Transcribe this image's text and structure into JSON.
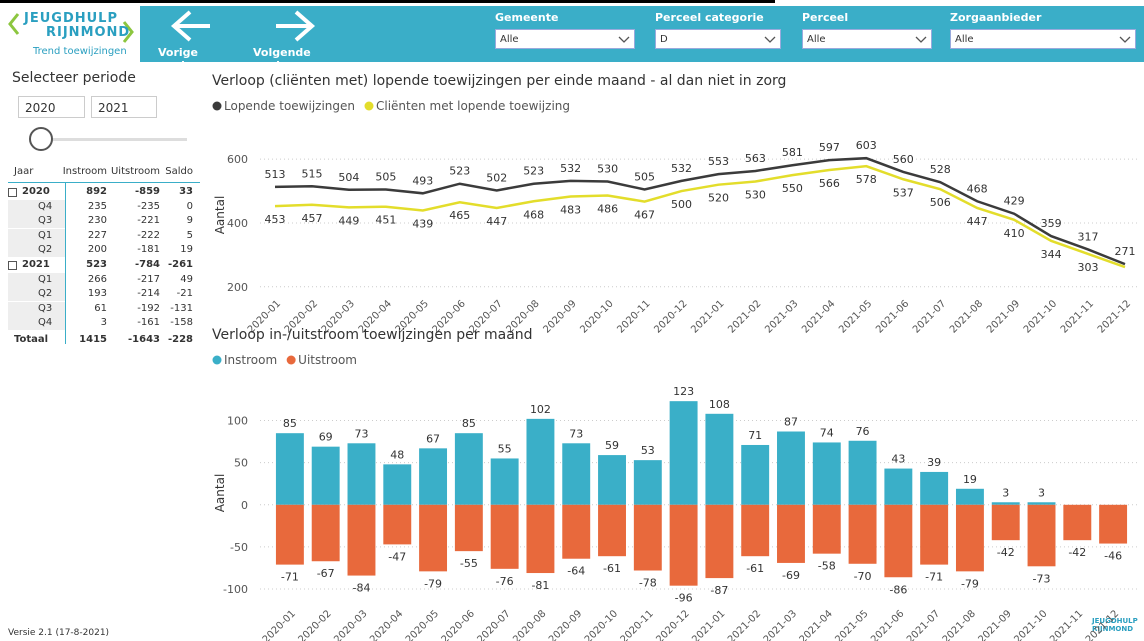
{
  "header": {
    "logo_line1": "JEUGDHULP",
    "logo_line2": "RIJNMOND",
    "subtitle": "Trend toewijzingen",
    "prev": "Vorige pagina",
    "next": "Volgende pagina",
    "filters": [
      {
        "label": "Gemeente",
        "value": "Alle"
      },
      {
        "label": "Perceel categorie",
        "value": "D"
      },
      {
        "label": "Perceel",
        "value": "Alle"
      },
      {
        "label": "Zorgaanbieder",
        "value": "Alle"
      }
    ]
  },
  "sidebar": {
    "title": "Selecteer periode",
    "from": "2020",
    "to": "2021",
    "table": {
      "header": [
        "Jaar",
        "Instroom",
        "Uitstroom",
        "Saldo"
      ],
      "rows": [
        [
          "2020",
          "892",
          "-859",
          "33"
        ],
        [
          "Q4",
          "235",
          "-235",
          "0"
        ],
        [
          "Q3",
          "230",
          "-221",
          "9"
        ],
        [
          "Q1",
          "227",
          "-222",
          "5"
        ],
        [
          "Q2",
          "200",
          "-181",
          "19"
        ],
        [
          "2021",
          "523",
          "-784",
          "-261"
        ],
        [
          "Q1",
          "266",
          "-217",
          "49"
        ],
        [
          "Q2",
          "193",
          "-214",
          "-21"
        ],
        [
          "Q3",
          "61",
          "-192",
          "-131"
        ],
        [
          "Q4",
          "3",
          "-161",
          "-158"
        ]
      ],
      "total": [
        "Totaal",
        "1415",
        "-1643",
        "-228"
      ]
    }
  },
  "footer": {
    "version": "Versie 2.1 (17-8-2021)"
  },
  "chart_data": [
    {
      "type": "line",
      "title": "Verloop (cliënten met) lopende toewijzingen per einde maand - al dan niet in zorg",
      "y_label": "Aantal",
      "categories": [
        "2020-01",
        "2020-02",
        "2020-03",
        "2020-04",
        "2020-05",
        "2020-06",
        "2020-07",
        "2020-08",
        "2020-09",
        "2020-10",
        "2020-11",
        "2020-12",
        "2021-01",
        "2021-02",
        "2021-03",
        "2021-04",
        "2021-05",
        "2021-06",
        "2021-07",
        "2021-08",
        "2021-09",
        "2021-10",
        "2021-11",
        "2021-12"
      ],
      "series": [
        {
          "name": "Lopende toewijzingen",
          "color": "#3b3b3b",
          "values": [
            513,
            515,
            504,
            505,
            493,
            523,
            502,
            523,
            532,
            530,
            505,
            532,
            553,
            563,
            581,
            597,
            603,
            560,
            528,
            468,
            429,
            359,
            317,
            271
          ]
        },
        {
          "name": "Cliënten met lopende toewijzing",
          "color": "#e3dd2b",
          "values": [
            453,
            457,
            449,
            451,
            439,
            465,
            447,
            468,
            483,
            486,
            467,
            500,
            520,
            530,
            550,
            566,
            578,
            537,
            506,
            447,
            410,
            344,
            303,
            262
          ],
          "value_labels": [
            "453",
            "457",
            "449",
            "451",
            "439",
            "465",
            "447",
            "468",
            "483",
            "486",
            "467",
            "500",
            "520",
            "530",
            "550",
            "566",
            "578",
            "537",
            "506",
            "447",
            "410",
            "344",
            "303",
            null
          ]
        }
      ],
      "ylim": [
        190,
        660
      ],
      "yticks": [
        200,
        400,
        600
      ],
      "grid": true
    },
    {
      "type": "bar",
      "title": "Verloop in-/uitstroom toewijzingen per maand",
      "y_label": "Aantal",
      "categories": [
        "2020-01",
        "2020-02",
        "2020-03",
        "2020-04",
        "2020-05",
        "2020-06",
        "2020-07",
        "2020-08",
        "2020-09",
        "2020-10",
        "2020-11",
        "2020-12",
        "2021-01",
        "2021-02",
        "2021-03",
        "2021-04",
        "2021-05",
        "2021-06",
        "2021-07",
        "2021-08",
        "2021-09",
        "2021-10",
        "2021-11",
        "2021-12"
      ],
      "series": [
        {
          "name": "Instroom",
          "color": "#3aafc8",
          "values": [
            85,
            69,
            73,
            48,
            67,
            85,
            55,
            102,
            73,
            59,
            53,
            123,
            108,
            71,
            87,
            74,
            76,
            43,
            39,
            19,
            3,
            3,
            null,
            null
          ]
        },
        {
          "name": "Uitstroom",
          "color": "#e8693c",
          "values": [
            -71,
            -67,
            -84,
            -47,
            -79,
            -55,
            -76,
            -81,
            -64,
            -61,
            -78,
            -96,
            -87,
            -61,
            -69,
            -58,
            -70,
            -86,
            -71,
            -79,
            -42,
            -73,
            -42,
            -46
          ]
        }
      ],
      "ylim": [
        -113,
        141
      ],
      "yticks": [
        -100,
        -50,
        0,
        50,
        100
      ],
      "grid": true
    }
  ]
}
